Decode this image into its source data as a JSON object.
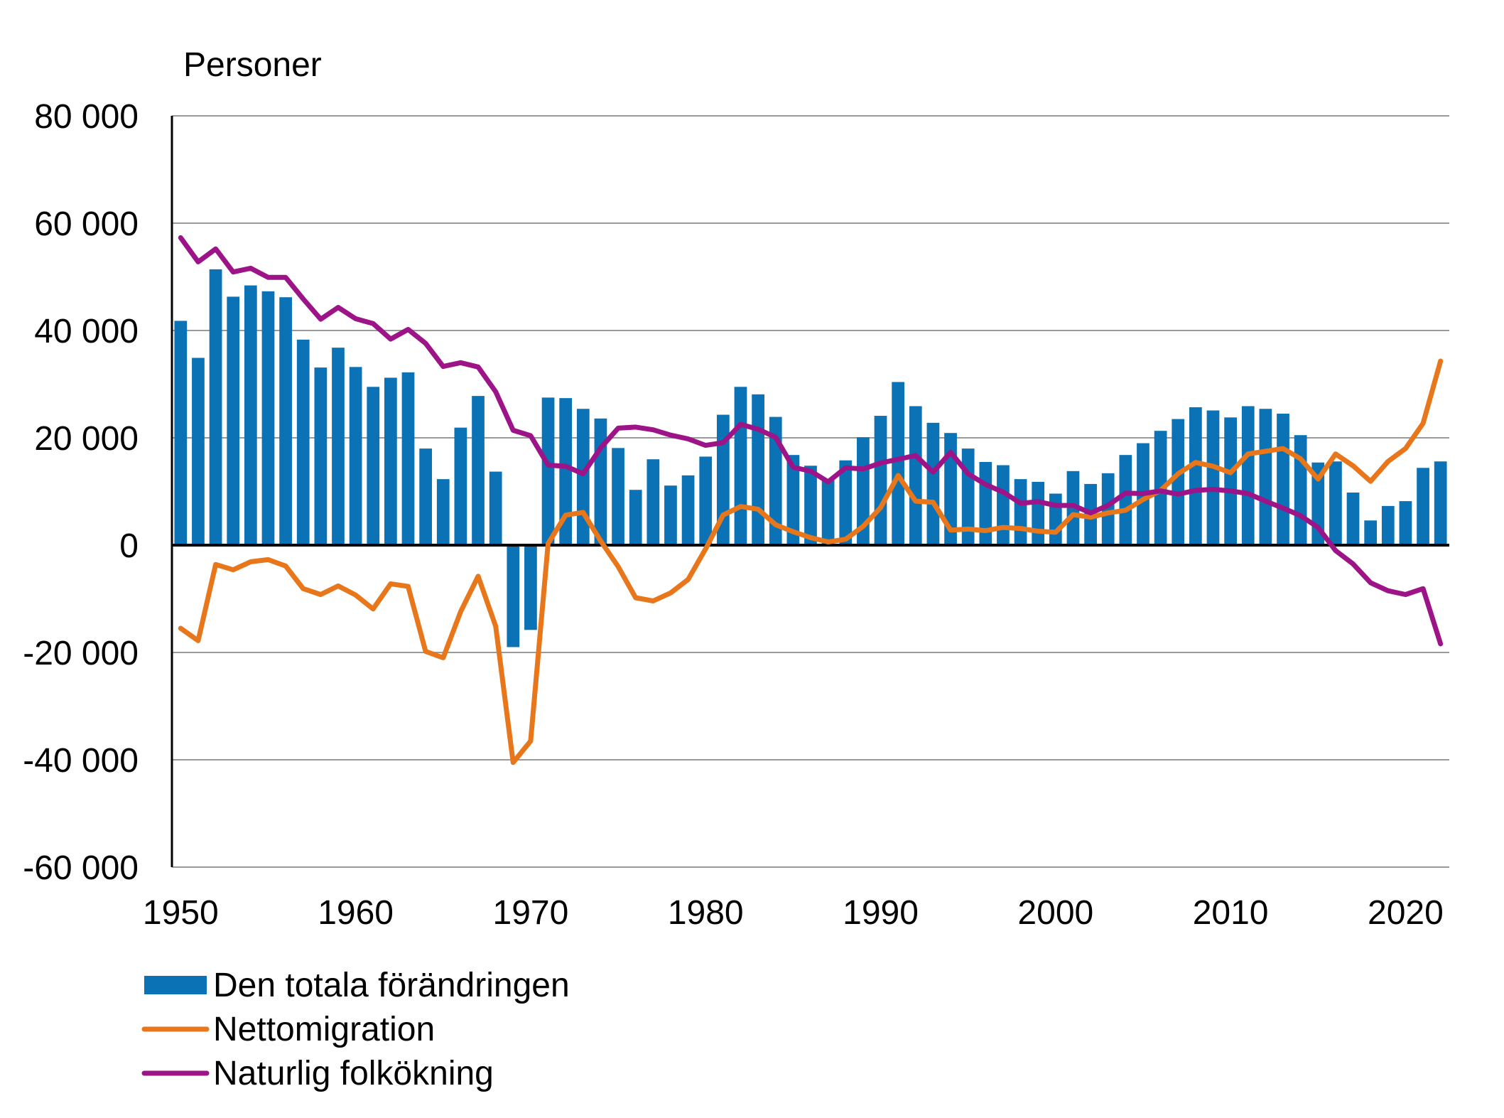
{
  "chart_data": {
    "type": "bar+line",
    "ylabel": "Personer",
    "ylim": [
      -60000,
      80000
    ],
    "y_ticks": [
      80000,
      60000,
      40000,
      20000,
      0,
      -20000,
      -40000,
      -60000
    ],
    "y_tick_labels": [
      "80 000",
      "60 000",
      "40 000",
      "20 000",
      "0",
      "-20 000",
      "-40 000",
      "-60 000"
    ],
    "x_range": [
      1949.5,
      2022.5
    ],
    "x_ticks": [
      1950,
      1960,
      1970,
      1980,
      1990,
      2000,
      2010,
      2020
    ],
    "x_tick_labels": [
      "1950",
      "1960",
      "1970",
      "1980",
      "1990",
      "2000",
      "2010",
      "2020"
    ],
    "grid": true,
    "legend_position": "bottom-left",
    "colors": {
      "bars": "#0b72b5",
      "nettomigration": "#e8761b",
      "naturlig": "#9c1487",
      "grid": "#9a9a9a"
    },
    "years": [
      1950,
      1951,
      1952,
      1953,
      1954,
      1955,
      1956,
      1957,
      1958,
      1959,
      1960,
      1961,
      1962,
      1963,
      1964,
      1965,
      1966,
      1967,
      1968,
      1969,
      1970,
      1971,
      1972,
      1973,
      1974,
      1975,
      1976,
      1977,
      1978,
      1979,
      1980,
      1981,
      1982,
      1983,
      1984,
      1985,
      1986,
      1987,
      1988,
      1989,
      1990,
      1991,
      1992,
      1993,
      1994,
      1995,
      1996,
      1997,
      1998,
      1999,
      2000,
      2001,
      2002,
      2003,
      2004,
      2005,
      2006,
      2007,
      2008,
      2009,
      2010,
      2011,
      2012,
      2013,
      2014,
      2015,
      2016,
      2017,
      2018,
      2019,
      2020,
      2021,
      2022
    ],
    "series": [
      {
        "name": "Den totala förändringen",
        "kind": "bar",
        "values": [
          41800,
          34900,
          51400,
          46300,
          48400,
          47300,
          46200,
          38300,
          33100,
          36800,
          33200,
          29500,
          31200,
          32200,
          18000,
          12300,
          21900,
          27800,
          13700,
          -19000,
          -15800,
          27500,
          27400,
          25400,
          23600,
          18100,
          10300,
          16000,
          11100,
          13000,
          16500,
          24300,
          29500,
          28100,
          23900,
          16800,
          14800,
          12300,
          15800,
          20100,
          24100,
          30400,
          25900,
          22800,
          20900,
          18000,
          15500,
          14900,
          12300,
          11800,
          9600,
          13800,
          11400,
          13400,
          16800,
          19000,
          21300,
          23500,
          25700,
          25100,
          23800,
          25900,
          25400,
          24500,
          20500,
          15400,
          15600,
          9800,
          4600,
          7300,
          8200,
          14400,
          15600
        ]
      },
      {
        "name": "Nettomigration",
        "kind": "line",
        "values": [
          -15500,
          -17800,
          -3600,
          -4600,
          -3100,
          -2700,
          -3900,
          -8100,
          -9200,
          -7600,
          -9300,
          -11900,
          -7200,
          -7700,
          -19800,
          -21000,
          -12400,
          -5800,
          -15100,
          -40500,
          -36500,
          300,
          5600,
          6100,
          800,
          -4000,
          -9800,
          -10400,
          -8900,
          -6400,
          -700,
          5600,
          7200,
          6700,
          3800,
          2500,
          1400,
          600,
          1100,
          3500,
          7000,
          13000,
          8200,
          8000,
          2800,
          3000,
          2700,
          3300,
          3100,
          2600,
          2400,
          5700,
          5200,
          6000,
          6500,
          8500,
          10200,
          13300,
          15400,
          14700,
          13500,
          17000,
          17500,
          18000,
          16100,
          12300,
          17000,
          14800,
          11900,
          15600,
          18000,
          22700,
          34300
        ]
      },
      {
        "name": "Naturlig folkökning",
        "kind": "line",
        "values": [
          57300,
          52800,
          55200,
          50900,
          51600,
          49900,
          49900,
          45900,
          42100,
          44300,
          42200,
          41300,
          38400,
          40200,
          37600,
          33300,
          34000,
          33200,
          28600,
          21400,
          20400,
          14900,
          14700,
          13300,
          18100,
          21800,
          22000,
          21500,
          20500,
          19800,
          18600,
          19100,
          22500,
          21600,
          20100,
          14500,
          13800,
          11800,
          14400,
          14200,
          15300,
          16000,
          16700,
          13600,
          17300,
          13300,
          11300,
          9900,
          7800,
          8100,
          7400,
          7400,
          6000,
          7400,
          9700,
          9600,
          10100,
          9500,
          10200,
          10400,
          10100,
          9600,
          8200,
          6900,
          5500,
          3300,
          -1000,
          -3500,
          -7000,
          -8500,
          -9200,
          -8100,
          -18400
        ]
      }
    ]
  }
}
